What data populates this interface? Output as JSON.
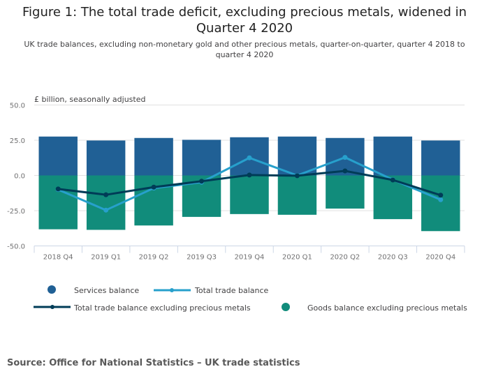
{
  "title": "Figure 1: The total trade deficit, excluding precious metals, widened in Quarter 4 2020",
  "subtitle": "UK trade balances, excluding non-monetary gold and other precious metals, quarter-on-quarter, quarter 4 2018 to quarter 4 2020",
  "source": "Source: Office for National Statistics – UK trade statistics",
  "colors": {
    "services": "#206095",
    "goods": "#118c7b",
    "total": "#27a0cc",
    "total_excl": "#003c57"
  },
  "chart_data": {
    "type": "bar",
    "title": "Figure 1: The total trade deficit, excluding precious metals, widened in Quarter 4 2020",
    "subtitle": "UK trade balances, excluding non-monetary gold and other precious metals, quarter-on-quarter, quarter 4 2018 to quarter 4 2020",
    "ylabel": "£ billion, seasonally adjusted",
    "xlabel": "",
    "ylim": [
      -50,
      50
    ],
    "yticks": [
      -50,
      -25,
      0,
      25,
      50
    ],
    "ytick_labels": [
      "-50.0",
      "-25.0",
      "0.0",
      "25.0",
      "50.0"
    ],
    "grid": true,
    "stacked": true,
    "legend_position": "bottom",
    "categories": [
      "2018 Q4",
      "2019 Q1",
      "2019 Q2",
      "2019 Q3",
      "2019 Q4",
      "2020 Q1",
      "2020 Q2",
      "2020 Q3",
      "2020 Q4"
    ],
    "series": [
      {
        "name": "Services balance",
        "type": "bar",
        "color": "#206095",
        "values": [
          27.6,
          24.8,
          26.6,
          25.3,
          27.1,
          27.6,
          26.6,
          27.6,
          24.8
        ]
      },
      {
        "name": "Goods balance excluding precious metals",
        "type": "bar",
        "color": "#118c7b",
        "values": [
          -38.2,
          -38.6,
          -35.5,
          -29.4,
          -27.4,
          -27.9,
          -23.5,
          -31.0,
          -39.5
        ]
      },
      {
        "name": "Total trade balance",
        "type": "line",
        "color": "#27a0cc",
        "values": [
          -10.0,
          -24.6,
          -9.0,
          -4.8,
          12.5,
          0.0,
          12.8,
          -3.0,
          -17.2
        ]
      },
      {
        "name": "Total trade balance excluding precious metals",
        "type": "line",
        "color": "#003c57",
        "values": [
          -9.6,
          -13.7,
          -8.3,
          -4.1,
          0.3,
          -0.2,
          3.2,
          -3.2,
          -14.0
        ]
      }
    ]
  },
  "legend": [
    {
      "label": "Services balance",
      "symbol": "circle",
      "color": "#206095"
    },
    {
      "label": "Total trade balance",
      "symbol": "line-marker",
      "color": "#27a0cc"
    },
    {
      "label": "Total trade balance excluding precious metals",
      "symbol": "line-marker",
      "color": "#003c57"
    },
    {
      "label": "Goods balance excluding precious metals",
      "symbol": "circle",
      "color": "#118c7b"
    }
  ]
}
